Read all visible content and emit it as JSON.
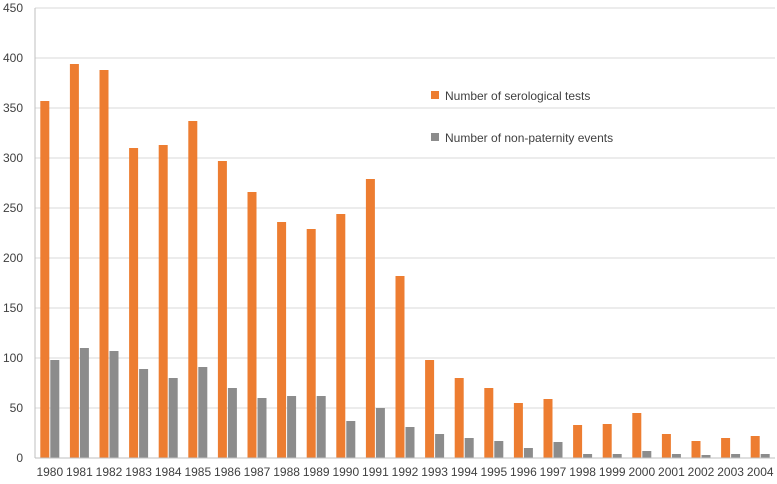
{
  "chart_data": {
    "type": "bar",
    "title": "",
    "xlabel": "",
    "ylabel": "",
    "ylim": [
      0,
      450
    ],
    "yticks": [
      0,
      50,
      100,
      150,
      200,
      250,
      300,
      350,
      400,
      450
    ],
    "grid": true,
    "legend_position": "top-right",
    "categories": [
      "1980",
      "1981",
      "1982",
      "1983",
      "1984",
      "1985",
      "1986",
      "1987",
      "1988",
      "1989",
      "1990",
      "1991",
      "1992",
      "1993",
      "1994",
      "1995",
      "1996",
      "1997",
      "1998",
      "1999",
      "2000",
      "2001",
      "2002",
      "2003",
      "2004"
    ],
    "series": [
      {
        "name": "Number of serological tests",
        "color": "#ED7D31",
        "values": [
          357,
          394,
          388,
          310,
          313,
          337,
          297,
          266,
          236,
          229,
          244,
          279,
          182,
          98,
          80,
          70,
          55,
          59,
          33,
          34,
          45,
          24,
          17,
          20,
          22
        ]
      },
      {
        "name": "Number of non-paternity events",
        "color": "#8C8C8C",
        "values": [
          98,
          110,
          107,
          89,
          80,
          91,
          70,
          60,
          62,
          62,
          37,
          50,
          31,
          24,
          20,
          17,
          10,
          16,
          4,
          4,
          7,
          4,
          3,
          4,
          4
        ]
      }
    ]
  }
}
